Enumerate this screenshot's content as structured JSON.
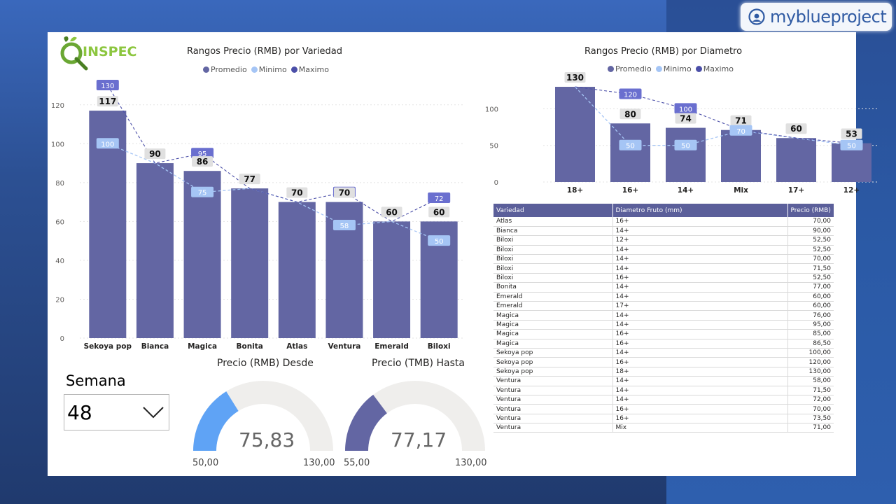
{
  "brand": {
    "name": "myblueproject",
    "icon": "user-circle-icon"
  },
  "logo": {
    "text": "INSPEC",
    "icon": "q-leaf-logo"
  },
  "colors": {
    "promedio": "#6366a3",
    "minimo": "#a5c5f5",
    "maximo": "#4b4fa8",
    "gauge1": "#5fa3f5",
    "gauge2": "#6366a3",
    "gauge_track": "#efeeec"
  },
  "chart_variedad": {
    "title": "Rangos Precio (RMB) por Variedad",
    "legend": [
      "Promedio",
      "Minimo",
      "Maximo"
    ]
  },
  "chart_diametro": {
    "title": "Rangos Precio (RMB) por Diametro",
    "legend": [
      "Promedio",
      "Minimo",
      "Maximo"
    ]
  },
  "chart_data": [
    {
      "type": "bar",
      "title": "Rangos Precio (RMB) por Variedad",
      "categories": [
        "Sekoya pop",
        "Bianca",
        "Magica",
        "Bonita",
        "Atlas",
        "Ventura",
        "Emerald",
        "Biloxi"
      ],
      "series": [
        {
          "name": "Promedio",
          "type": "bar",
          "values": [
            117,
            90,
            86,
            77,
            70,
            70,
            60,
            60
          ]
        },
        {
          "name": "Minimo",
          "type": "line",
          "values": [
            100,
            90,
            75,
            77,
            70,
            58,
            60,
            50
          ]
        },
        {
          "name": "Maximo",
          "type": "line",
          "values": [
            130,
            90,
            95,
            77,
            70,
            75,
            60,
            72
          ]
        }
      ],
      "yticks": [
        0,
        20,
        40,
        60,
        80,
        100,
        120
      ],
      "ylim": [
        0,
        130
      ],
      "grid": true,
      "legend_position": "top"
    },
    {
      "type": "bar",
      "title": "Rangos Precio (RMB) por Diametro",
      "categories": [
        "18+",
        "16+",
        "14+",
        "Mix",
        "17+",
        "12+"
      ],
      "series": [
        {
          "name": "Promedio",
          "type": "bar",
          "values": [
            130,
            80,
            74,
            71,
            60,
            53
          ]
        },
        {
          "name": "Minimo",
          "type": "line",
          "values": [
            130,
            50,
            50,
            70,
            60,
            50
          ]
        },
        {
          "name": "Maximo",
          "type": "line",
          "values": [
            130,
            120,
            100,
            71,
            60,
            53
          ]
        }
      ],
      "yticks": [
        0,
        50,
        100
      ],
      "ylim": [
        0,
        130
      ],
      "grid": true,
      "legend_position": "top"
    }
  ],
  "slicer": {
    "label": "Semana",
    "value": "48",
    "icon": "chevron-down-icon"
  },
  "gauges": [
    {
      "title": "Precio (RMB) Desde",
      "value_text": "75,83",
      "value": 75.83,
      "min": 50,
      "max": 130,
      "min_text": "50,00",
      "max_text": "130,00"
    },
    {
      "title": "Precio (TMB) Hasta",
      "value_text": "77,17",
      "value": 77.17,
      "min": 55,
      "max": 130,
      "min_text": "55,00",
      "max_text": "130,00"
    }
  ],
  "table": {
    "headers": [
      "Variedad",
      "Diametro Fruto (mm)",
      "Precio (RMB)"
    ],
    "rows": [
      [
        "Atlas",
        "16+",
        "70,00"
      ],
      [
        "Bianca",
        "14+",
        "90,00"
      ],
      [
        "Biloxi",
        "12+",
        "52,50"
      ],
      [
        "Biloxi",
        "14+",
        "52,50"
      ],
      [
        "Biloxi",
        "14+",
        "70,00"
      ],
      [
        "Biloxi",
        "14+",
        "71,50"
      ],
      [
        "Biloxi",
        "16+",
        "52,50"
      ],
      [
        "Bonita",
        "14+",
        "77,00"
      ],
      [
        "Emerald",
        "14+",
        "60,00"
      ],
      [
        "Emerald",
        "17+",
        "60,00"
      ],
      [
        "Magica",
        "14+",
        "76,00"
      ],
      [
        "Magica",
        "14+",
        "95,00"
      ],
      [
        "Magica",
        "16+",
        "85,00"
      ],
      [
        "Magica",
        "16+",
        "86,50"
      ],
      [
        "Sekoya pop",
        "14+",
        "100,00"
      ],
      [
        "Sekoya pop",
        "16+",
        "120,00"
      ],
      [
        "Sekoya pop",
        "18+",
        "130,00"
      ],
      [
        "Ventura",
        "14+",
        "58,00"
      ],
      [
        "Ventura",
        "14+",
        "71,50"
      ],
      [
        "Ventura",
        "14+",
        "72,00"
      ],
      [
        "Ventura",
        "16+",
        "70,00"
      ],
      [
        "Ventura",
        "16+",
        "73,50"
      ],
      [
        "Ventura",
        "Mix",
        "71,00"
      ]
    ]
  }
}
